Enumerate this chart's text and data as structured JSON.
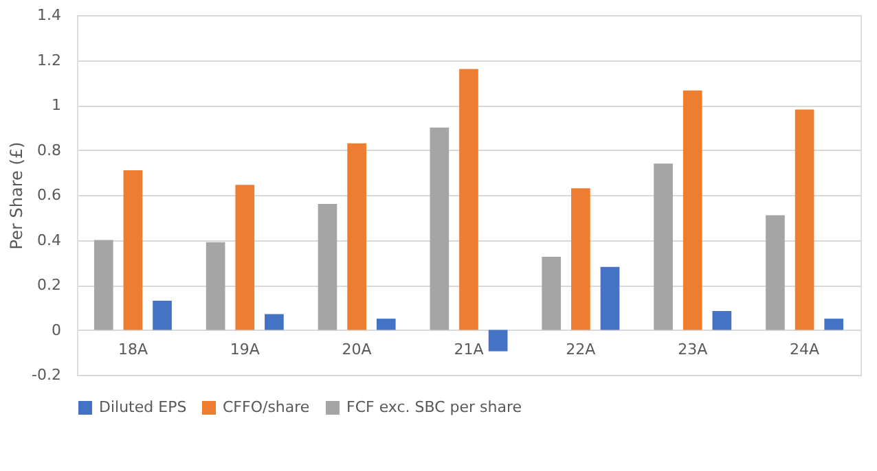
{
  "chart_data": {
    "type": "bar",
    "ylabel": "Per Share (£)",
    "categories": [
      "18A",
      "19A",
      "20A",
      "21A",
      "22A",
      "23A",
      "24A"
    ],
    "series": [
      {
        "name": "Diluted EPS",
        "color": "#4472c4",
        "values": [
          0.13,
          0.07,
          0.05,
          -0.095,
          0.28,
          0.084,
          0.05
        ]
      },
      {
        "name": "CFFO/share",
        "color": "#ed7d31",
        "values": [
          0.71,
          0.645,
          0.83,
          1.16,
          0.63,
          1.065,
          0.98
        ]
      },
      {
        "name": "FCF exc. SBC per share",
        "color": "#a5a5a5",
        "values": [
          0.4,
          0.39,
          0.56,
          0.9,
          0.325,
          0.74,
          0.51
        ]
      }
    ],
    "ylim": [
      -0.2,
      1.4
    ],
    "yticks": [
      -0.2,
      0,
      0.2,
      0.4,
      0.6,
      0.8,
      1,
      1.2,
      1.4
    ],
    "grid": "y",
    "legend": "bottom"
  }
}
